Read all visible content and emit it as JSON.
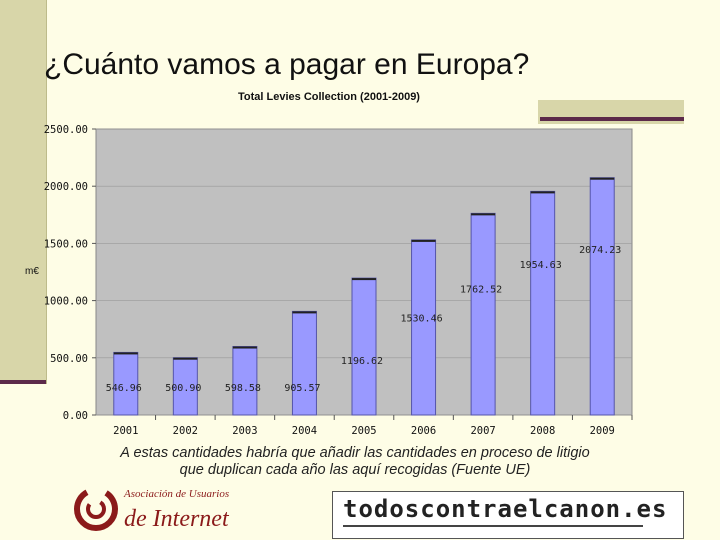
{
  "slide": {
    "title": "¿Cuánto vamos a pagar en Europa?",
    "caption_line1": "A estas cantidades habría que añadir las cantidades en proceso de litigio",
    "caption_line2": "que duplican cada año las aquí recogidas (Fuente UE)"
  },
  "logos": {
    "aui_line1": "Asociación de Usuarios",
    "aui_line2": "de Internet",
    "tce": "todoscontraelcanon.es"
  },
  "colors": {
    "bar_fill": "#9999ff",
    "bar_stroke": "#5555aa",
    "plot_background": "#c0c0c0",
    "slide_background": "#fefde6",
    "accent_rule": "#5c2a4a",
    "logo_red": "#8b1a1a"
  },
  "chart_data": {
    "type": "bar",
    "title": "Total Levies Collection (2001-2009)",
    "ylabel": "m€",
    "xlabel": "",
    "categories": [
      "2001",
      "2002",
      "2003",
      "2004",
      "2005",
      "2006",
      "2007",
      "2008",
      "2009"
    ],
    "values": [
      546.96,
      500.9,
      598.58,
      905.57,
      1196.62,
      1530.46,
      1762.52,
      1954.63,
      2074.23
    ],
    "value_labels": [
      "546.96",
      "500.90",
      "598.58",
      "905.57",
      "1196.62",
      "1530.46",
      "1762.52",
      "1954.63",
      "2074.23"
    ],
    "ylim": [
      0,
      2500
    ],
    "yticks": [
      "0.00",
      "500.00",
      "1000.00",
      "1500.00",
      "2000.00",
      "2500.00"
    ],
    "ytick_values": [
      0,
      500,
      1000,
      1500,
      2000,
      2500
    ],
    "grid": true,
    "legend": "none"
  }
}
